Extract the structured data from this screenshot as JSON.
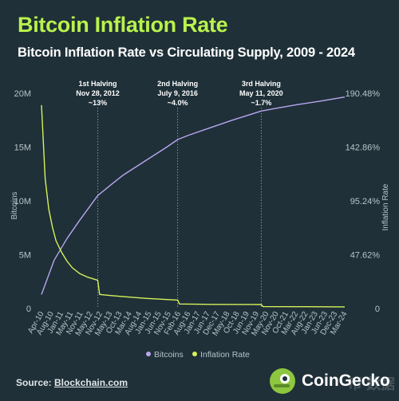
{
  "title": "Bitcoin Inflation Rate",
  "subtitle": "Bitcoin Inflation Rate vs Circulating Supply, 2009 - 2024",
  "source": {
    "prefix": "Source: ",
    "link": "Blockchain.com"
  },
  "brand": {
    "name": "CoinGecko",
    "watermark": "币 数据"
  },
  "colors": {
    "background": "#1f3038",
    "title": "#b9f24c",
    "bitcoins_line": "#b8a6f0",
    "inflation_line": "#d6f25a",
    "annotation_line": "#9aa9b2",
    "axis_text": "#b8c3c9"
  },
  "chart_data": {
    "type": "line",
    "title": "Bitcoin Inflation Rate vs Circulating Supply, 2009 - 2024",
    "x_tick_labels": [
      "Apr-10",
      "Aug-10",
      "Jan-11",
      "May-11",
      "Nov-11",
      "May-12",
      "Nov-12",
      "May-13",
      "Oct-13",
      "Mar-14",
      "Aug-14",
      "Jan-15",
      "Jun-15",
      "Nov-15",
      "Feb-16",
      "Aug-16",
      "Jan-17",
      "Jun-17",
      "Dec-17",
      "May-18",
      "Oct-18",
      "Jun-19",
      "Nov-19",
      "May-20",
      "Nov-20",
      "Oct-21",
      "Mar-22",
      "Aug-22",
      "Jan-23",
      "Jun-23",
      "Dec-23",
      "Mar-24"
    ],
    "left_axis": {
      "label": "Bitcoins",
      "ticks": [
        "0",
        "5M",
        "10M",
        "15M",
        "20M"
      ],
      "range": [
        0,
        20000000
      ]
    },
    "right_axis": {
      "label": "Inflation Rate",
      "ticks": [
        "0",
        "47.62%",
        "95.24%",
        "142.86%",
        "190.48%"
      ],
      "range": [
        0,
        190.48
      ]
    },
    "legend": {
      "position": "bottom-center",
      "items": [
        "Bitcoins",
        "Inflation Rate"
      ]
    },
    "grid": false,
    "annotations": [
      {
        "lines": [
          "1st Halving",
          "Nov 28, 2012",
          "~13%"
        ],
        "date": "Nov 28, 2012",
        "value": "~13%"
      },
      {
        "lines": [
          "2nd Halving",
          "July 9, 2016",
          "~4.0%"
        ],
        "date": "July 9, 2016",
        "value": "~4.0%"
      },
      {
        "lines": [
          "3rd Halving",
          "May 11, 2020",
          "~1.7%"
        ],
        "date": "May 11, 2020",
        "value": "~1.7%"
      }
    ],
    "series": [
      {
        "name": "Bitcoins",
        "axis": "left",
        "points": [
          [
            "Apr-10",
            1300000
          ],
          [
            "Nov-10",
            4500000
          ],
          [
            "Jun-11",
            6500000
          ],
          [
            "Jan-12",
            8200000
          ],
          [
            "Nov-12",
            10500000
          ],
          [
            "Jul-13",
            11600000
          ],
          [
            "Jan-14",
            12400000
          ],
          [
            "Jan-15",
            13700000
          ],
          [
            "Jan-16",
            15000000
          ],
          [
            "Jul-16",
            15700000
          ],
          [
            "Jan-17",
            16100000
          ],
          [
            "Jan-18",
            16800000
          ],
          [
            "Jan-19",
            17500000
          ],
          [
            "May-20",
            18350000
          ],
          [
            "Jan-21",
            18600000
          ],
          [
            "Jan-22",
            18950000
          ],
          [
            "Jan-23",
            19250000
          ],
          [
            "Mar-24",
            19650000
          ]
        ]
      },
      {
        "name": "Inflation Rate",
        "axis": "right",
        "points": [
          [
            "Apr-10",
            180
          ],
          [
            "Jun-10",
            115
          ],
          [
            "Aug-10",
            88
          ],
          [
            "Oct-10",
            72
          ],
          [
            "Dec-10",
            60
          ],
          [
            "Mar-11",
            50
          ],
          [
            "Jun-11",
            42
          ],
          [
            "Sep-11",
            36
          ],
          [
            "Jan-12",
            31
          ],
          [
            "May-12",
            28
          ],
          [
            "Nov-12",
            25
          ],
          [
            "Dec-12",
            12.5
          ],
          [
            "Jun-13",
            11.5
          ],
          [
            "Jan-14",
            10.5
          ],
          [
            "Jan-15",
            9
          ],
          [
            "Jan-16",
            8
          ],
          [
            "Jul-16",
            7.5
          ],
          [
            "Aug-16",
            4
          ],
          [
            "Jan-18",
            3.7
          ],
          [
            "Jan-20",
            3.6
          ],
          [
            "May-20",
            3.5
          ],
          [
            "Jun-20",
            1.7
          ],
          [
            "Jan-22",
            1.6
          ],
          [
            "Mar-24",
            1.5
          ]
        ]
      }
    ]
  }
}
